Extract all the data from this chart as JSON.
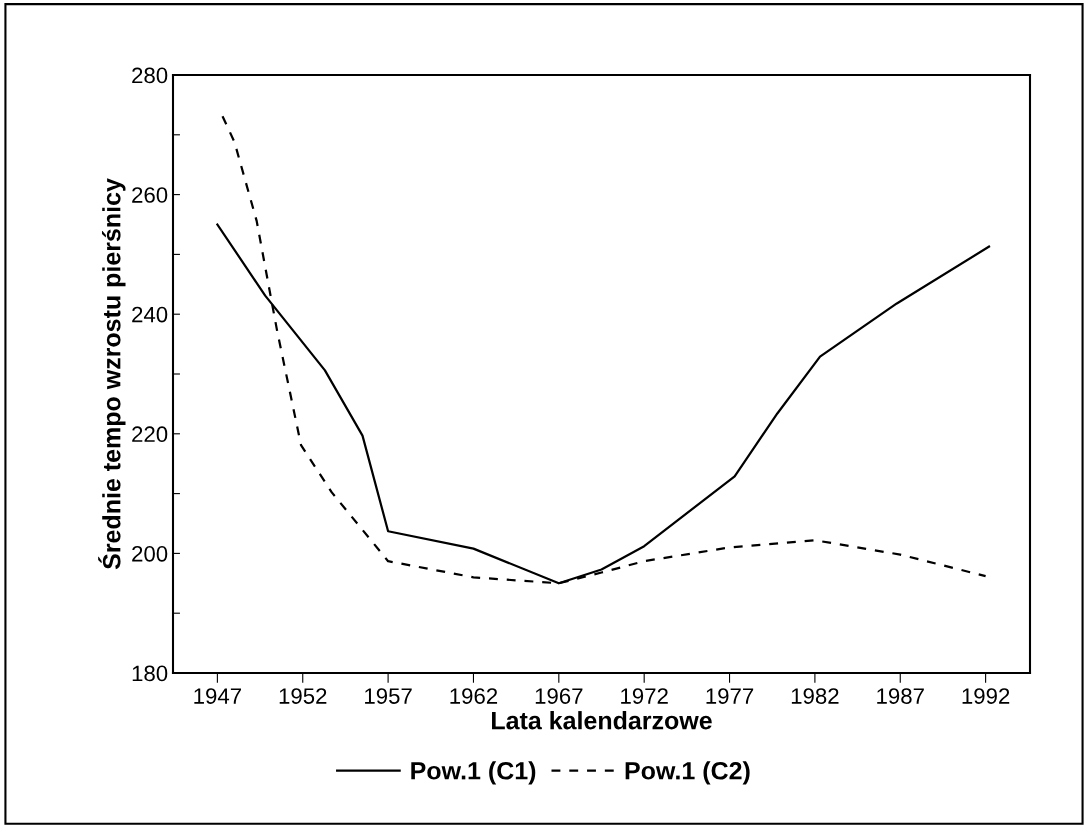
{
  "chart_data": {
    "type": "line",
    "xlabel": "Lata kalendarzowe",
    "ylabel": "Średnie tempo wzrostu pierśnicy",
    "xlim": [
      1944.4,
      1994.6
    ],
    "xticks": [
      1947,
      1952,
      1957,
      1962,
      1967,
      1972,
      1977,
      1982,
      1987,
      1992
    ],
    "ylim": [
      180,
      280
    ],
    "yticks": [
      180,
      {
        "value": 190,
        "label": null
      },
      200,
      {
        "value": 210,
        "label": null
      },
      220,
      {
        "value": 230,
        "label": null
      },
      240,
      {
        "value": 250,
        "label": null
      },
      260,
      {
        "value": 270,
        "label": null
      },
      280
    ],
    "grid": false,
    "legend": "bottom",
    "series": [
      {
        "name": "Pow.1 (C1)",
        "color": "#000000",
        "line_style": "solid",
        "x": [
          1947,
          1949.8,
          1953.3,
          1955.5,
          1957,
          1962,
          1967,
          1969.5,
          1972,
          1977.3,
          1979.8,
          1982.3,
          1986.8,
          1992.2
        ],
        "values": [
          255,
          243.1,
          230.6,
          219.7,
          203.7,
          200.8,
          195,
          197.3,
          201.2,
          212.9,
          223.4,
          232.9,
          241.8,
          251.3
        ]
      },
      {
        "name": "Pow.1 (C2)",
        "color": "#000000",
        "line_style": "dashed",
        "x": [
          1947.3,
          1948,
          1949.3,
          1950.5,
          1951.9,
          1953.7,
          1957,
          1962,
          1967,
          1969.5,
          1972,
          1977,
          1982,
          1987,
          1992
        ],
        "values": [
          273.1,
          268.8,
          255.6,
          237.2,
          218.1,
          210.2,
          198.7,
          196,
          195,
          196.8,
          198.7,
          201,
          202.2,
          199.8,
          196.2
        ]
      }
    ]
  }
}
